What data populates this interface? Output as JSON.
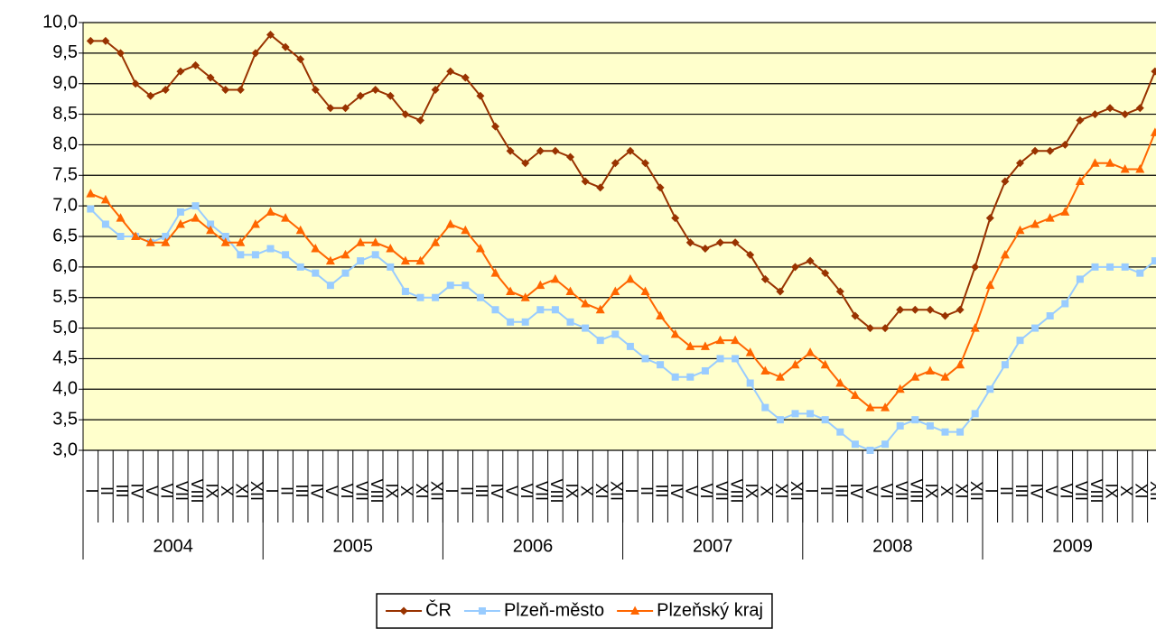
{
  "chart_data": {
    "type": "line",
    "categories": [
      "I",
      "II",
      "III",
      "IV",
      "V",
      "VI",
      "VII",
      "VIII",
      "IX",
      "X",
      "XI",
      "XII",
      "I",
      "II",
      "III",
      "IV",
      "V",
      "VI",
      "VII",
      "VIII",
      "IX",
      "X",
      "XI",
      "XII",
      "I",
      "II",
      "III",
      "IV",
      "V",
      "VI",
      "VII",
      "VIII",
      "IX",
      "X",
      "XI",
      "XII",
      "I",
      "II",
      "III",
      "IV",
      "V",
      "VI",
      "VII",
      "VIII",
      "IX",
      "X",
      "XI",
      "XII",
      "I",
      "II",
      "III",
      "IV",
      "V",
      "VI",
      "VII",
      "VIII",
      "IX",
      "X",
      "XI",
      "XII",
      "I",
      "II",
      "III",
      "IV",
      "V",
      "VI",
      "VII",
      "VIII",
      "IX",
      "X",
      "XI",
      "XII"
    ],
    "groups": [
      "2004",
      "2005",
      "2006",
      "2007",
      "2008",
      "2009"
    ],
    "series": [
      {
        "name": "ČR",
        "color": "#993300",
        "marker": "diamond",
        "values": [
          9.7,
          9.7,
          9.5,
          9.0,
          8.8,
          8.9,
          9.2,
          9.3,
          9.1,
          8.9,
          8.9,
          9.5,
          9.8,
          9.6,
          9.4,
          8.9,
          8.6,
          8.6,
          8.8,
          8.9,
          8.8,
          8.5,
          8.4,
          8.9,
          9.2,
          9.1,
          8.8,
          8.3,
          7.9,
          7.7,
          7.9,
          7.9,
          7.8,
          7.4,
          7.3,
          7.7,
          7.9,
          7.7,
          7.3,
          6.8,
          6.4,
          6.3,
          6.4,
          6.4,
          6.2,
          5.8,
          5.6,
          6.0,
          6.1,
          5.9,
          5.6,
          5.2,
          5.0,
          5.0,
          5.3,
          5.3,
          5.3,
          5.2,
          5.3,
          6.0,
          6.8,
          7.4,
          7.7,
          7.9,
          7.9,
          8.0,
          8.4,
          8.5,
          8.6,
          8.5,
          8.6,
          9.2
        ]
      },
      {
        "name": "Plzeň-město",
        "color": "#99ccff",
        "marker": "square",
        "values": [
          6.95,
          6.7,
          6.5,
          6.5,
          6.4,
          6.5,
          6.9,
          7.0,
          6.7,
          6.5,
          6.2,
          6.2,
          6.3,
          6.2,
          6.0,
          5.9,
          5.7,
          5.9,
          6.1,
          6.2,
          6.0,
          5.6,
          5.5,
          5.5,
          5.7,
          5.7,
          5.5,
          5.3,
          5.1,
          5.1,
          5.3,
          5.3,
          5.1,
          5.0,
          4.8,
          4.9,
          4.7,
          4.5,
          4.4,
          4.2,
          4.2,
          4.3,
          4.5,
          4.5,
          4.1,
          3.7,
          3.5,
          3.6,
          3.6,
          3.5,
          3.3,
          3.1,
          3.0,
          3.1,
          3.4,
          3.5,
          3.4,
          3.3,
          3.3,
          3.6,
          4.0,
          4.4,
          4.8,
          5.0,
          5.2,
          5.4,
          5.8,
          6.0,
          6.0,
          6.0,
          5.9,
          6.1
        ]
      },
      {
        "name": "Plzeňský kraj",
        "color": "#ff6600",
        "marker": "triangle",
        "values": [
          7.2,
          7.1,
          6.8,
          6.5,
          6.4,
          6.4,
          6.7,
          6.8,
          6.6,
          6.4,
          6.4,
          6.7,
          6.9,
          6.8,
          6.6,
          6.3,
          6.1,
          6.2,
          6.4,
          6.4,
          6.3,
          6.1,
          6.1,
          6.4,
          6.7,
          6.6,
          6.3,
          5.9,
          5.6,
          5.5,
          5.7,
          5.8,
          5.6,
          5.4,
          5.3,
          5.6,
          5.8,
          5.6,
          5.2,
          4.9,
          4.7,
          4.7,
          4.8,
          4.8,
          4.6,
          4.3,
          4.2,
          4.4,
          4.6,
          4.4,
          4.1,
          3.9,
          3.7,
          3.7,
          4.0,
          4.2,
          4.3,
          4.2,
          4.4,
          5.0,
          5.7,
          6.2,
          6.6,
          6.7,
          6.8,
          6.9,
          7.4,
          7.7,
          7.7,
          7.6,
          7.6,
          8.2
        ]
      }
    ],
    "ylim": [
      3,
      10
    ],
    "yticks": [
      {
        "value": 3,
        "label": "3,0"
      },
      {
        "value": 3.5,
        "label": "3,5"
      },
      {
        "value": 4,
        "label": "4,0"
      },
      {
        "value": 4.5,
        "label": "4,5"
      },
      {
        "value": 5,
        "label": "5,0"
      },
      {
        "value": 5.5,
        "label": "5,5"
      },
      {
        "value": 6,
        "label": "6,0"
      },
      {
        "value": 6.5,
        "label": "6,5"
      },
      {
        "value": 7,
        "label": "7,0"
      },
      {
        "value": 7.5,
        "label": "7,5"
      },
      {
        "value": 8,
        "label": "8,0"
      },
      {
        "value": 8.5,
        "label": "8,5"
      },
      {
        "value": 9,
        "label": "9,0"
      },
      {
        "value": 9.5,
        "label": "9,5"
      },
      {
        "value": 10,
        "label": "10,0"
      }
    ],
    "grid": true,
    "legend": "bottom",
    "background": "#ffffcc"
  }
}
